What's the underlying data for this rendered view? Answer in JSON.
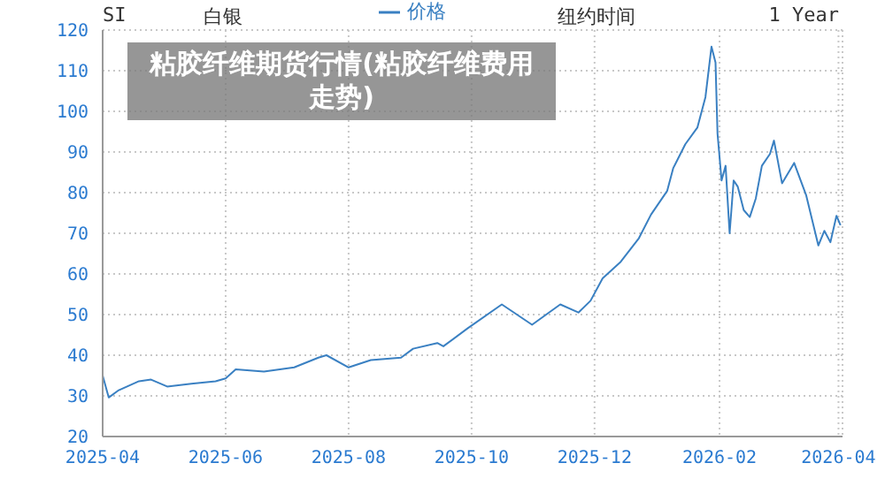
{
  "chart_data": {
    "type": "line",
    "title": "粘胶纤维期货行情(粘胶纤维费用走势)",
    "annotations": [
      "SI",
      "白银",
      "纽约时间",
      "1 Year"
    ],
    "x": [
      "2025-04-01",
      "2025-04-04",
      "2025-04-09",
      "2025-04-19",
      "2025-04-25",
      "2025-05-03",
      "2025-05-15",
      "2025-05-27",
      "2025-06-01",
      "2025-06-06",
      "2025-06-20",
      "2025-07-05",
      "2025-07-17",
      "2025-07-21",
      "2025-08-01",
      "2025-08-12",
      "2025-08-27",
      "2025-09-02",
      "2025-09-14",
      "2025-09-17",
      "2025-09-29",
      "2025-10-16",
      "2025-10-31",
      "2025-11-14",
      "2025-11-23",
      "2025-11-29",
      "2025-12-05",
      "2025-12-14",
      "2025-12-23",
      "2025-12-29",
      "2026-01-06",
      "2026-01-09",
      "2026-01-15",
      "2026-01-21",
      "2026-01-25",
      "2026-01-28",
      "2026-01-30",
      "2026-01-31",
      "2026-02-02",
      "2026-02-04",
      "2026-02-06",
      "2026-02-08",
      "2026-02-10",
      "2026-02-13",
      "2026-02-16",
      "2026-02-19",
      "2026-02-22",
      "2026-02-26",
      "2026-02-28",
      "2026-03-04",
      "2026-03-10",
      "2026-03-16",
      "2026-03-22",
      "2026-03-25",
      "2026-03-28",
      "2026-03-31",
      "2026-04-02"
    ],
    "series": [
      {
        "name": "价格",
        "color": "#3a80c2",
        "values": [
          35,
          29.6,
          31.4,
          33.6,
          34,
          32.3,
          33,
          33.6,
          34.3,
          36.5,
          36,
          37,
          39.4,
          40,
          37,
          38.8,
          39.4,
          41.6,
          43,
          42.2,
          46.6,
          52.5,
          47.5,
          52.5,
          50.5,
          53.4,
          58.9,
          63,
          68.8,
          74.6,
          80.4,
          86,
          91.9,
          96,
          103.5,
          115.9,
          112,
          94.5,
          83,
          86.6,
          70,
          83,
          81.5,
          75.7,
          74,
          78.6,
          86.6,
          89.5,
          92.8,
          82.3,
          87.3,
          79.3,
          67,
          70.6,
          67.8,
          74.3,
          72
        ]
      }
    ],
    "xlim": [
      "2025-04-01",
      "2026-04-03"
    ],
    "xticks": [
      "2025-04",
      "2025-06",
      "2025-08",
      "2025-10",
      "2025-12",
      "2026-02",
      "2026-04"
    ],
    "ylim": [
      20,
      120
    ],
    "yticks": [
      20,
      30,
      40,
      50,
      60,
      70,
      80,
      90,
      100,
      110,
      120
    ],
    "grid": true,
    "legend": "top",
    "marker": "none",
    "line_style": "solid"
  }
}
